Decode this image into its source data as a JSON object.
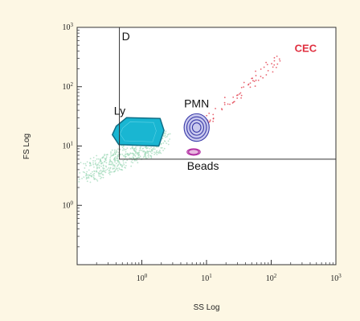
{
  "chart_data": {
    "type": "scatter",
    "xscale": "log",
    "yscale": "log",
    "xlabel": "SS Log",
    "ylabel": "FS Log",
    "xlim": [
      0.1,
      1000
    ],
    "ylim": [
      0.1,
      1000
    ],
    "x_ticks": [
      {
        "base": "10",
        "exp": "0",
        "value": 1
      },
      {
        "base": "10",
        "exp": "1",
        "value": 10
      },
      {
        "base": "10",
        "exp": "2",
        "value": 100
      },
      {
        "base": "10",
        "exp": "3",
        "value": 1000
      }
    ],
    "y_ticks": [
      {
        "base": "10",
        "exp": "0",
        "value": 1
      },
      {
        "base": "10",
        "exp": "1",
        "value": 10
      },
      {
        "base": "10",
        "exp": "2",
        "value": 100
      },
      {
        "base": "10",
        "exp": "3",
        "value": 1000
      }
    ],
    "gate": {
      "label": "D",
      "x_range": [
        0.45,
        1000
      ],
      "y_range": [
        6,
        1000
      ]
    },
    "populations": [
      {
        "label": "Ly",
        "color": "#19b6d2",
        "x_range": [
          0.35,
          2.2
        ],
        "y_range": [
          10,
          30
        ]
      },
      {
        "label": "PMN",
        "color": "#3a3aa8",
        "x_range": [
          4.5,
          11
        ],
        "y_range": [
          12,
          35
        ]
      },
      {
        "label": "Beads",
        "color": "#b02aa0",
        "x_range": [
          5,
          8
        ],
        "y_range": [
          7,
          9
        ]
      },
      {
        "label": "CEC",
        "color": "#e03040",
        "x_range": [
          25,
          130
        ],
        "y_range": [
          40,
          300
        ]
      }
    ],
    "debris_color": "#9ed8b8"
  }
}
